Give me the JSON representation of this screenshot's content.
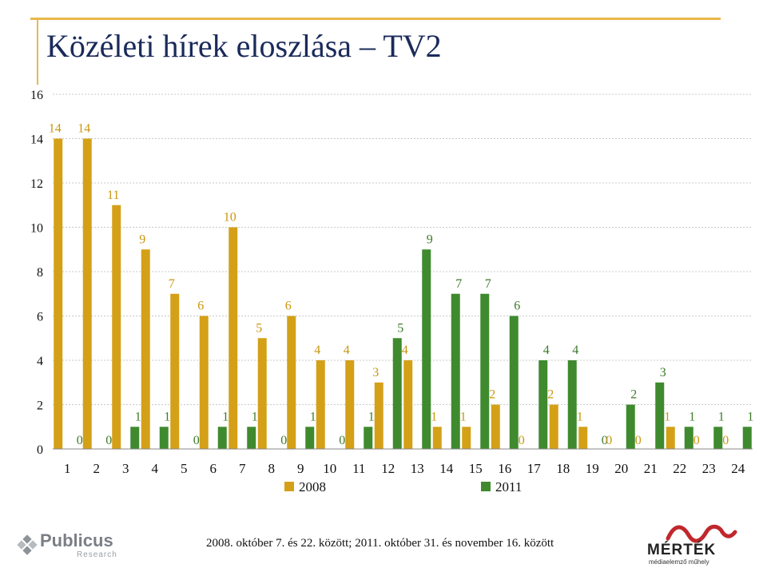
{
  "title": "Közéleti hírek eloszlása – TV2",
  "footnote": "2008. október 7. és 22. között; 2011. október 31. és november 16. között",
  "logos": {
    "publicus_name": "Publicus",
    "publicus_sub": "Research",
    "mertek_name": "MÉRTÉK",
    "mertek_sub": "médiaelemző műhely"
  },
  "colors": {
    "series_2008": "#d4a017",
    "series_2011": "#3f8a2e",
    "grid": "#c8c8c8",
    "label_2008": "#c9960f",
    "label_2011": "#3d7a2a"
  },
  "chart_data": {
    "type": "bar",
    "title": "Közéleti hírek eloszlása – TV2",
    "categories": [
      "1",
      "2",
      "3",
      "4",
      "5",
      "6",
      "7",
      "8",
      "9",
      "10",
      "11",
      "12",
      "13",
      "14",
      "15",
      "16",
      "17",
      "18",
      "19",
      "20",
      "21",
      "22",
      "23",
      "24"
    ],
    "series": [
      {
        "name": "2008",
        "values": [
          14,
          14,
          11,
          9,
          7,
          6,
          10,
          5,
          6,
          4,
          4,
          3,
          4,
          1,
          1,
          2,
          0,
          2,
          1,
          0,
          0,
          1,
          0,
          0
        ]
      },
      {
        "name": "2011",
        "values": [
          0,
          0,
          1,
          1,
          0,
          1,
          1,
          0,
          1,
          0,
          1,
          5,
          9,
          7,
          7,
          6,
          4,
          4,
          0,
          2,
          3,
          1,
          1,
          1
        ]
      }
    ],
    "ylim": [
      0,
      16
    ],
    "yticks": [
      0,
      2,
      4,
      6,
      8,
      10,
      12,
      14,
      16
    ],
    "xlabel": "",
    "ylabel": "",
    "grid": true,
    "legend": "bottom"
  }
}
